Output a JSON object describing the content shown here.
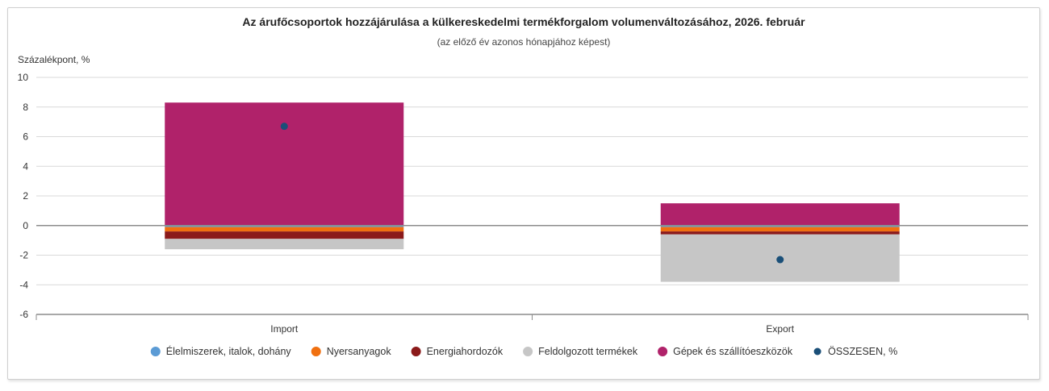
{
  "chart_data": {
    "type": "bar",
    "stacked": true,
    "title": "Az árufőcsoportok hozzájárulása a külkereskedelmi termékforgalom volumenváltozásához, 2026. február",
    "subtitle": "(az előző év azonos hónapjához képest)",
    "ylabel": "Százalékpont, %",
    "ylim": [
      -6,
      10
    ],
    "yticks": [
      10,
      8,
      6,
      4,
      2,
      0,
      -2,
      -4,
      -6
    ],
    "categories": [
      "Import",
      "Export"
    ],
    "grid": true,
    "legend_position": "bottom",
    "series": [
      {
        "name": "Élelmiszerek, italok, dohány",
        "color": "#5b9bd5",
        "values": [
          -0.1,
          -0.1
        ]
      },
      {
        "name": "Nyersanyagok",
        "color": "#f07010",
        "values": [
          -0.3,
          -0.3
        ]
      },
      {
        "name": "Energiahordozók",
        "color": "#8b1a1a",
        "values": [
          -0.5,
          -0.2
        ]
      },
      {
        "name": "Feldolgozott termékek",
        "color": "#c6c6c6",
        "values": [
          -0.7,
          -3.2
        ]
      },
      {
        "name": "Gépek és szállítóeszközök",
        "color": "#b0226a",
        "values": [
          8.3,
          1.5
        ]
      }
    ],
    "total": {
      "name": "ÖSSZESEN, %",
      "color": "#1a4f78",
      "values": [
        6.7,
        -2.3
      ]
    }
  }
}
